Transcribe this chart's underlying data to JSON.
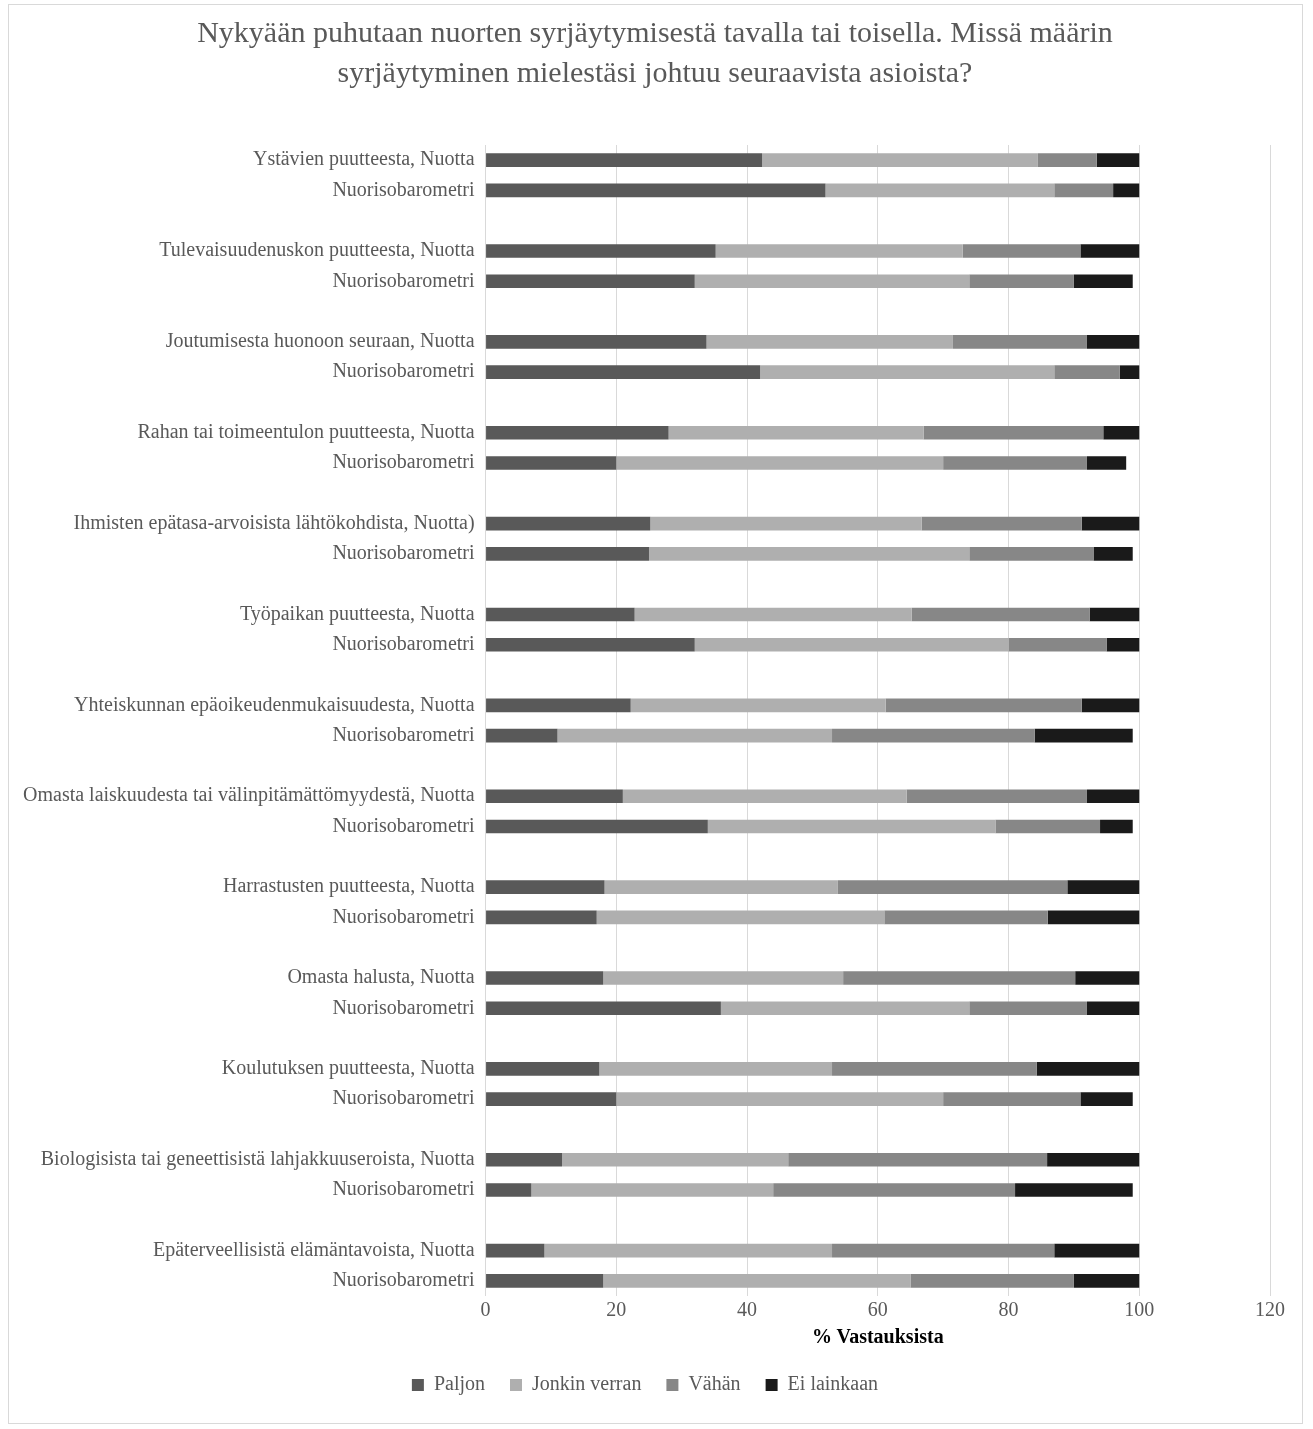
{
  "chart_data": {
    "type": "bar",
    "orientation": "horizontal",
    "stacked": true,
    "title": "Nykyään puhutaan nuorten syrjäytymisestä tavalla tai toisella. Missä määrin syrjäytyminen mielestäsi johtuu seuraavista asioista?",
    "xlabel": "% Vastauksista",
    "categories": [
      "Ystävien puutteesta, Nuotta",
      "Nuorisobarometri",
      null,
      "Tulevaisuudenuskon puutteesta, Nuotta",
      "Nuorisobarometri",
      null,
      "Joutumisesta huonoon seuraan, Nuotta",
      "Nuorisobarometri",
      null,
      "Rahan tai toimeentulon puutteesta, Nuotta",
      "Nuorisobarometri",
      null,
      "Ihmisten epätasa-arvoisista lähtökohdista, Nuotta)",
      "Nuorisobarometri",
      null,
      "Työpaikan puutteesta, Nuotta",
      "Nuorisobarometri",
      null,
      "Yhteiskunnan epäoikeudenmukaisuudesta, Nuotta",
      "Nuorisobarometri",
      null,
      "Omasta laiskuudesta tai välinpitämättömyydestä, Nuotta",
      "Nuorisobarometri",
      null,
      "Harrastusten puutteesta, Nuotta",
      "Nuorisobarometri",
      null,
      "Omasta halusta, Nuotta",
      "Nuorisobarometri",
      null,
      "Koulutuksen puutteesta, Nuotta",
      "Nuorisobarometri",
      null,
      "Biologisista tai geneettisistä lahjakkuuseroista, Nuotta",
      "Nuorisobarometri",
      null,
      "Epäterveellisistä elämäntavoista, Nuotta",
      "Nuorisobarometri"
    ],
    "series": [
      {
        "name": "Paljon",
        "color": "#595959",
        "values": [
          42.3,
          52,
          null,
          35.2,
          32,
          null,
          33.8,
          42,
          null,
          28,
          20,
          null,
          25.2,
          25,
          null,
          22.8,
          32,
          null,
          22.2,
          11,
          null,
          21,
          34,
          null,
          18.2,
          17,
          null,
          18,
          36,
          null,
          17.4,
          20,
          null,
          11.7,
          7,
          null,
          9,
          18
        ]
      },
      {
        "name": "Jonkin verran",
        "color": "#afafaf",
        "values": [
          42.2,
          35,
          null,
          37.8,
          42,
          null,
          37.7,
          45,
          null,
          39,
          50,
          null,
          41.5,
          49,
          null,
          42.4,
          48,
          null,
          39,
          42,
          null,
          43.4,
          44,
          null,
          35.7,
          44,
          null,
          36.7,
          38,
          null,
          35.6,
          50,
          null,
          34.6,
          37,
          null,
          44,
          47
        ]
      },
      {
        "name": "Vähän",
        "color": "#878787",
        "values": [
          9,
          9,
          null,
          18,
          16,
          null,
          20.5,
          10,
          null,
          27.5,
          22,
          null,
          24.5,
          19,
          null,
          27.2,
          15,
          null,
          30,
          31,
          null,
          27.6,
          16,
          null,
          35.1,
          25,
          null,
          35.5,
          18,
          null,
          31.3,
          21,
          null,
          39.6,
          37,
          null,
          34,
          25
        ]
      },
      {
        "name": "Ei lainkaan",
        "color": "#1a1a1a",
        "values": [
          6.5,
          4,
          null,
          9,
          9,
          null,
          8,
          3,
          null,
          5.5,
          6,
          null,
          8.8,
          6,
          null,
          7.6,
          5,
          null,
          8.8,
          15,
          null,
          8,
          5,
          null,
          11,
          14,
          null,
          9.8,
          8,
          null,
          15.7,
          8,
          null,
          14.1,
          18,
          null,
          13,
          10
        ]
      }
    ],
    "xlim": [
      0,
      120
    ],
    "xticks": [
      0,
      20,
      40,
      60,
      80,
      100,
      120
    ],
    "grid": "x",
    "legend": "bottom"
  }
}
